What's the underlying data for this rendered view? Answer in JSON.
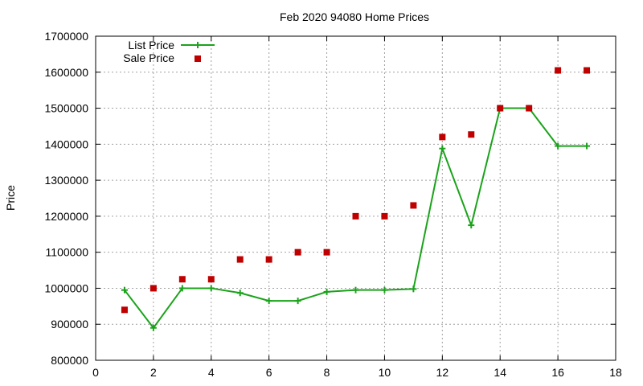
{
  "chart_data": {
    "type": "line",
    "title": "Feb 2020 94080 Home Prices",
    "ylabel": "Price",
    "xlabel": "",
    "xlim": [
      0,
      18
    ],
    "ylim": [
      800000,
      1700000
    ],
    "x_ticks": [
      0,
      2,
      4,
      6,
      8,
      10,
      12,
      14,
      16,
      18
    ],
    "y_ticks": [
      800000,
      900000,
      1000000,
      1100000,
      1200000,
      1300000,
      1400000,
      1500000,
      1600000,
      1700000
    ],
    "grid": true,
    "legend_position": "top-left",
    "series": [
      {
        "name": "List Price",
        "style": "line-cross",
        "color": "#1aa31a",
        "x": [
          1,
          2,
          3,
          4,
          5,
          6,
          7,
          8,
          9,
          10,
          11,
          12,
          13,
          14,
          15,
          16,
          17
        ],
        "y": [
          995000,
          890000,
          1000000,
          1000000,
          987000,
          965000,
          965000,
          990000,
          995000,
          995000,
          998000,
          1388000,
          1175000,
          1500000,
          1500000,
          1395000,
          1395000
        ]
      },
      {
        "name": "Sale Price",
        "style": "points-square",
        "color": "#c00000",
        "x": [
          1,
          2,
          3,
          4,
          5,
          6,
          7,
          8,
          9,
          10,
          11,
          12,
          13,
          14,
          15,
          16,
          17
        ],
        "y": [
          940000,
          1000000,
          1025000,
          1025000,
          1080000,
          1080000,
          1100000,
          1100000,
          1200000,
          1200000,
          1230000,
          1420000,
          1427000,
          1500000,
          1500000,
          1605000,
          1605000
        ]
      }
    ]
  }
}
